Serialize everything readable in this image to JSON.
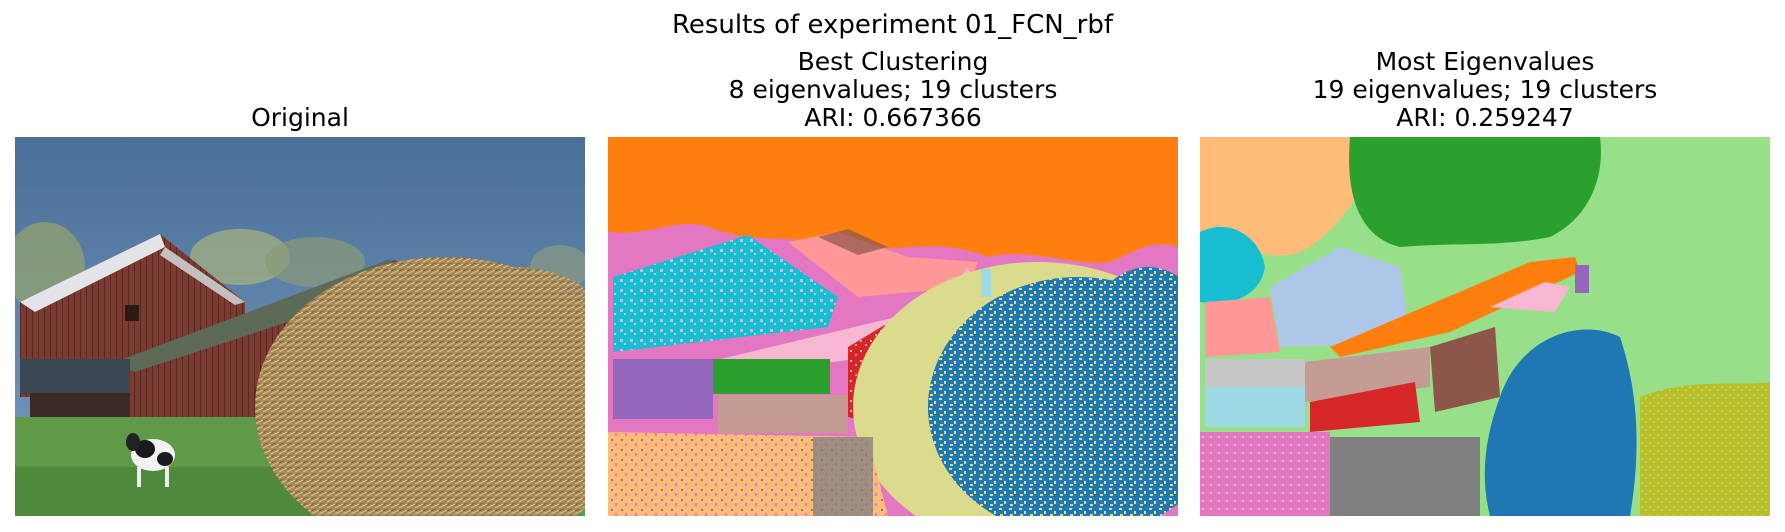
{
  "figure": {
    "suptitle": "Results of experiment 01_FCN_rbf"
  },
  "panels": [
    {
      "title_lines": [
        "Original"
      ]
    },
    {
      "title_lines": [
        "Best Clustering",
        "8 eigenvalues; 19 clusters",
        "ARI: 0.667366"
      ]
    },
    {
      "title_lines": [
        "Most Eigenvalues",
        "19 eigenvalues; 19 clusters",
        "ARI: 0.259247"
      ]
    }
  ],
  "colors": {
    "sky": "#4a72a0",
    "barn_red": "#7a3a30",
    "roof_green": "#5a6452",
    "grass": "#5f9a4a",
    "hay": "#b89a64",
    "c_orange": "#ff7f0e",
    "c_blue": "#1f77b4",
    "c_green": "#2ca02c",
    "c_red": "#d62728",
    "c_purple": "#9467bd",
    "c_brown": "#8c564b",
    "c_pink": "#e377c2",
    "c_gray": "#7f7f7f",
    "c_olive": "#bcbd22",
    "c_cyan": "#17becf",
    "c_lightblue": "#aec7e8",
    "c_lightorange": "#ffbb78",
    "c_lightgreen": "#98df8a",
    "c_lightred": "#ff9896",
    "c_lightbrown": "#c49c94",
    "c_lightpink": "#f7b6d2",
    "c_lightgray": "#c7c7c7",
    "c_lightolive": "#dbdb8d",
    "c_lightcyan": "#9edae5"
  }
}
